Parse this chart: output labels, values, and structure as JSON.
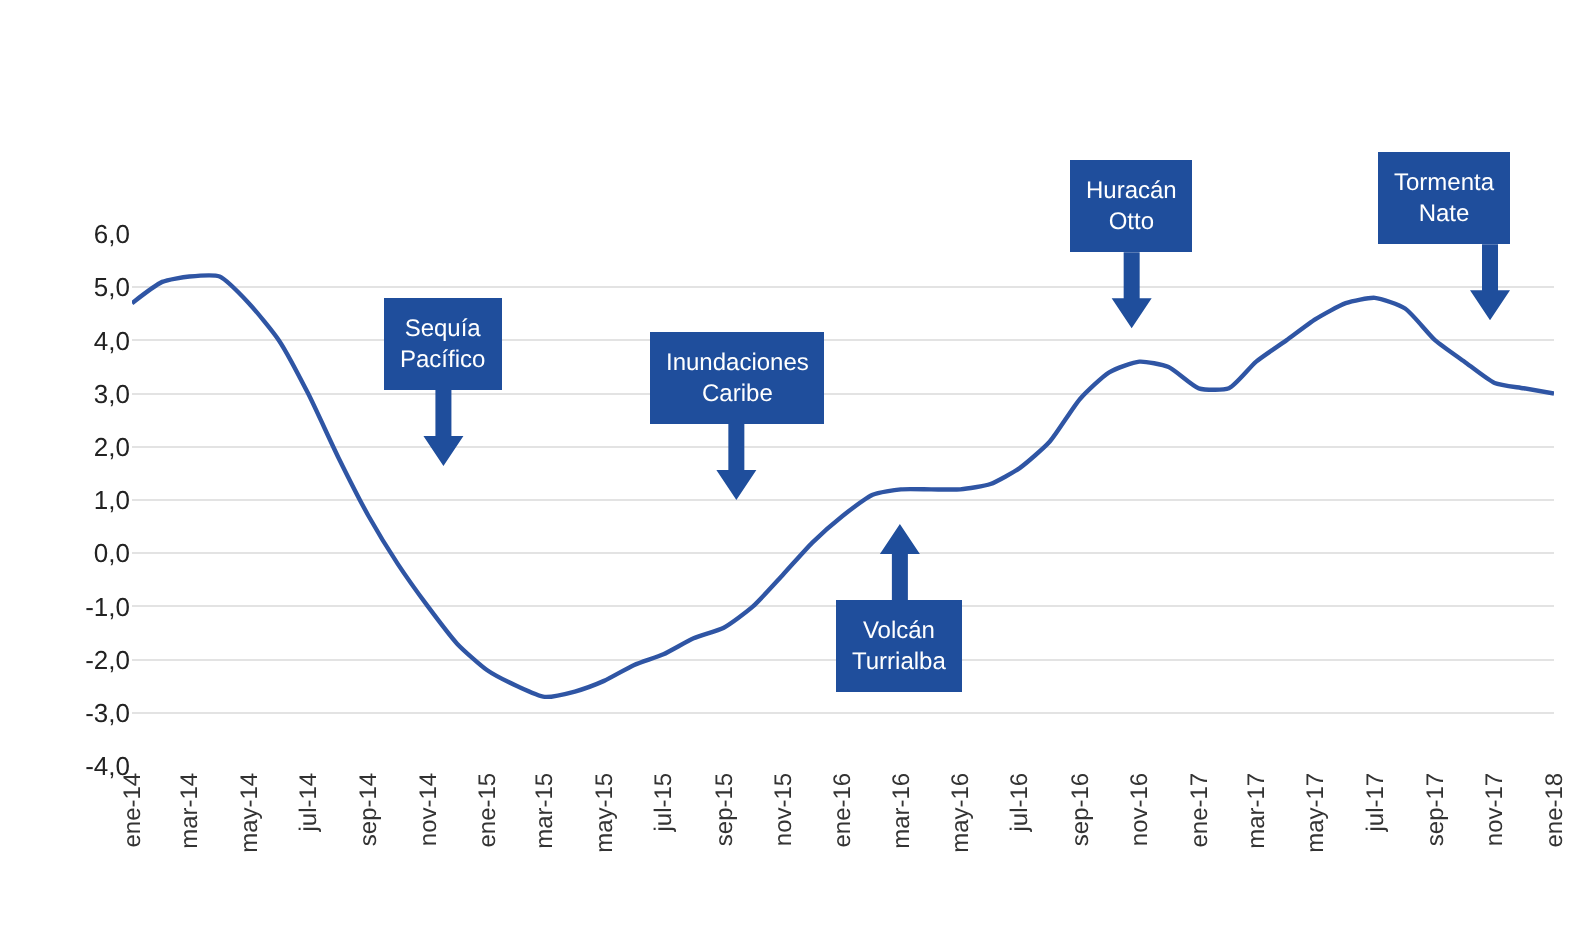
{
  "chart_data": {
    "type": "line",
    "x": [
      "2014-01",
      "2014-02",
      "2014-03",
      "2014-04",
      "2014-05",
      "2014-06",
      "2014-07",
      "2014-08",
      "2014-09",
      "2014-10",
      "2014-11",
      "2014-12",
      "2015-01",
      "2015-02",
      "2015-03",
      "2015-04",
      "2015-05",
      "2015-06",
      "2015-07",
      "2015-08",
      "2015-09",
      "2015-10",
      "2015-11",
      "2015-12",
      "2016-01",
      "2016-02",
      "2016-03",
      "2016-04",
      "2016-05",
      "2016-06",
      "2016-07",
      "2016-08",
      "2016-09",
      "2016-10",
      "2016-11",
      "2016-12",
      "2017-01",
      "2017-02",
      "2017-03",
      "2017-04",
      "2017-05",
      "2017-06",
      "2017-07",
      "2017-08",
      "2017-09",
      "2017-10",
      "2017-11",
      "2017-12",
      "2018-01"
    ],
    "series": [
      {
        "color": "#2f55a4",
        "values": [
          4.7,
          5.1,
          5.2,
          5.2,
          4.7,
          4.0,
          3.0,
          1.8,
          0.7,
          -0.2,
          -1.0,
          -1.7,
          -2.2,
          -2.5,
          -2.7,
          -2.6,
          -2.4,
          -2.1,
          -1.9,
          -1.6,
          -1.4,
          -1.0,
          -0.4,
          0.2,
          0.7,
          1.1,
          1.2,
          1.2,
          1.2,
          1.3,
          1.6,
          2.1,
          2.9,
          3.4,
          3.6,
          3.5,
          3.1,
          3.1,
          3.6,
          4.0,
          4.4,
          4.7,
          4.8,
          4.6,
          4.0,
          3.6,
          3.2,
          3.1,
          3.0
        ]
      }
    ],
    "xlim": [
      "2014-01",
      "2018-01"
    ],
    "xticks": [
      {
        "value": "2014-01",
        "label": "ene-14"
      },
      {
        "value": "2014-03",
        "label": "mar-14"
      },
      {
        "value": "2014-05",
        "label": "may-14"
      },
      {
        "value": "2014-07",
        "label": "jul-14"
      },
      {
        "value": "2014-09",
        "label": "sep-14"
      },
      {
        "value": "2014-11",
        "label": "nov-14"
      },
      {
        "value": "2015-01",
        "label": "ene-15"
      },
      {
        "value": "2015-03",
        "label": "mar-15"
      },
      {
        "value": "2015-05",
        "label": "may-15"
      },
      {
        "value": "2015-07",
        "label": "jul-15"
      },
      {
        "value": "2015-09",
        "label": "sep-15"
      },
      {
        "value": "2015-11",
        "label": "nov-15"
      },
      {
        "value": "2016-01",
        "label": "ene-16"
      },
      {
        "value": "2016-03",
        "label": "mar-16"
      },
      {
        "value": "2016-05",
        "label": "may-16"
      },
      {
        "value": "2016-07",
        "label": "jul-16"
      },
      {
        "value": "2016-09",
        "label": "sep-16"
      },
      {
        "value": "2016-11",
        "label": "nov-16"
      },
      {
        "value": "2017-01",
        "label": "ene-17"
      },
      {
        "value": "2017-03",
        "label": "mar-17"
      },
      {
        "value": "2017-05",
        "label": "may-17"
      },
      {
        "value": "2017-07",
        "label": "jul-17"
      },
      {
        "value": "2017-09",
        "label": "sep-17"
      },
      {
        "value": "2017-11",
        "label": "nov-17"
      },
      {
        "value": "2018-01",
        "label": "ene-18"
      }
    ],
    "ylim": [
      -4,
      6
    ],
    "yticks": [
      {
        "value": -4,
        "label": "-4,0"
      },
      {
        "value": -3,
        "label": "-3,0"
      },
      {
        "value": -2,
        "label": "-2,0"
      },
      {
        "value": -1,
        "label": "-1,0"
      },
      {
        "value": 0,
        "label": "0,0"
      },
      {
        "value": 1,
        "label": "1,0"
      },
      {
        "value": 2,
        "label": "2,0"
      },
      {
        "value": 3,
        "label": "3,0"
      },
      {
        "value": 4,
        "label": "4,0"
      },
      {
        "value": 5,
        "label": "5,0"
      },
      {
        "value": 6,
        "label": "6,0"
      }
    ],
    "grid": "y",
    "marker": "none",
    "line_style": "solid",
    "annotations": [
      "Sequía Pacífico",
      "Inundaciones Caribe",
      "Volcán Turrialba",
      "Huracán Otto",
      "Tormenta Nate"
    ]
  }
}
